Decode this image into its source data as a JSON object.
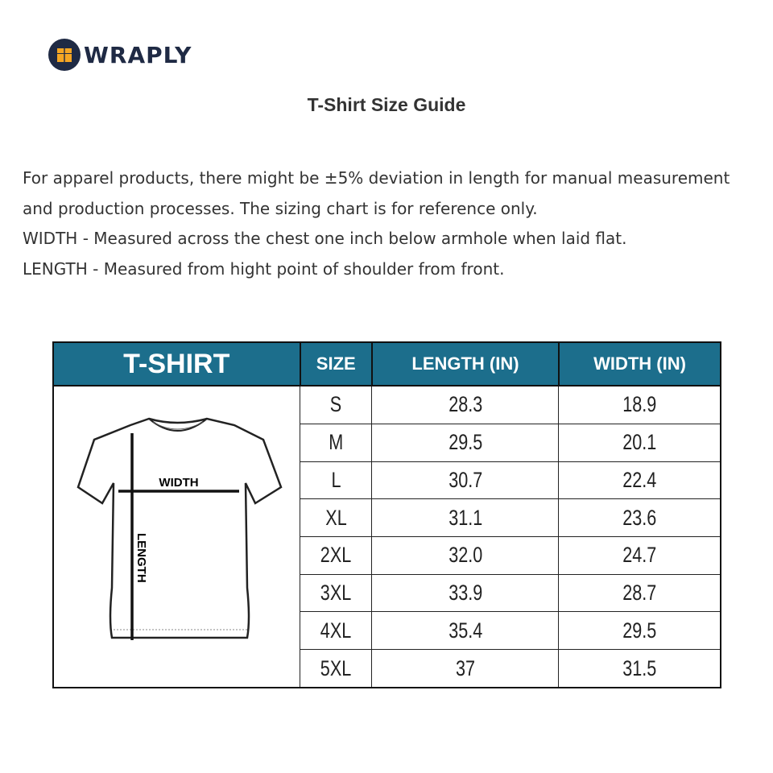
{
  "brand": {
    "name": "WRAPLY",
    "logo_colors": {
      "circle": "#1f2a44",
      "box": "#f5a623"
    }
  },
  "title": "T-Shirt Size Guide",
  "description": [
    "For apparel products, there might be ±5% deviation in length for manual measurement and production processes. The sizing chart is for reference only.",
    "WIDTH - Measured across the chest one inch below armhole when laid flat.",
    "LENGTH - Measured from hight point of shoulder from front."
  ],
  "table": {
    "header_color": "#1c6e8c",
    "headers": [
      "T-SHIRT",
      "SIZE",
      "LENGTH (IN)",
      "WIDTH (IN)"
    ],
    "diagram_labels": {
      "width": "WIDTH",
      "length": "LENGTH"
    },
    "rows": [
      {
        "size": "S",
        "length": "28.3",
        "width": "18.9"
      },
      {
        "size": "M",
        "length": "29.5",
        "width": "20.1"
      },
      {
        "size": "L",
        "length": "30.7",
        "width": "22.4"
      },
      {
        "size": "XL",
        "length": "31.1",
        "width": "23.6"
      },
      {
        "size": "2XL",
        "length": "32.0",
        "width": "24.7"
      },
      {
        "size": "3XL",
        "length": "33.9",
        "width": "28.7"
      },
      {
        "size": "4XL",
        "length": "35.4",
        "width": "29.5"
      },
      {
        "size": "5XL",
        "length": "37",
        "width": "31.5"
      }
    ]
  }
}
